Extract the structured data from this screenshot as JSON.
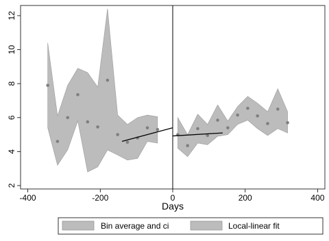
{
  "chart_data": {
    "type": "scatter",
    "xlabel": "Days",
    "ylabel": "",
    "xlim": [
      -420,
      420
    ],
    "ylim": [
      1.8,
      12.6
    ],
    "xticks": [
      -400,
      -200,
      0,
      200,
      400
    ],
    "yticks": [
      2,
      4,
      6,
      8,
      10,
      12
    ],
    "cutoff_x": 0,
    "grid": false,
    "legend_position": "bottom",
    "colors": {
      "band_fill": "#bcbcbc",
      "band_stroke": "#9a9a9a",
      "point": "#7f7f7f",
      "fit_line": "#000000",
      "cutoff_line": "#000000"
    },
    "series": [
      {
        "name": "Bin average and ci",
        "points": [
          {
            "x": -345,
            "y": 7.9,
            "lo": 5.4,
            "hi": 10.4
          },
          {
            "x": -318,
            "y": 4.6,
            "lo": 3.2,
            "hi": 6.1
          },
          {
            "x": -290,
            "y": 6.0,
            "lo": 4.1,
            "hi": 7.9
          },
          {
            "x": -262,
            "y": 7.35,
            "lo": 5.8,
            "hi": 8.9
          },
          {
            "x": -235,
            "y": 5.75,
            "lo": 2.8,
            "hi": 8.65
          },
          {
            "x": -207,
            "y": 5.45,
            "lo": 3.1,
            "hi": 7.8
          },
          {
            "x": -180,
            "y": 8.2,
            "lo": 4.1,
            "hi": 12.4
          },
          {
            "x": -152,
            "y": 5.0,
            "lo": 3.8,
            "hi": 6.15
          },
          {
            "x": -125,
            "y": 4.55,
            "lo": 3.5,
            "hi": 5.6
          },
          {
            "x": -97,
            "y": 4.8,
            "lo": 3.6,
            "hi": 6.0
          },
          {
            "x": -70,
            "y": 5.4,
            "lo": 4.6,
            "hi": 6.15
          },
          {
            "x": -42,
            "y": 5.3,
            "lo": 4.5,
            "hi": 6.05
          },
          {
            "x": 14,
            "y": 5.0,
            "lo": 4.2,
            "hi": 6.0
          },
          {
            "x": 41,
            "y": 4.35,
            "lo": 3.7,
            "hi": 5.0
          },
          {
            "x": 69,
            "y": 5.35,
            "lo": 4.5,
            "hi": 6.2
          },
          {
            "x": 96,
            "y": 4.95,
            "lo": 4.4,
            "hi": 5.6
          },
          {
            "x": 124,
            "y": 5.85,
            "lo": 4.9,
            "hi": 6.75
          },
          {
            "x": 152,
            "y": 5.4,
            "lo": 5.0,
            "hi": 5.8
          },
          {
            "x": 179,
            "y": 6.15,
            "lo": 5.6,
            "hi": 6.65
          },
          {
            "x": 207,
            "y": 6.55,
            "lo": 5.85,
            "hi": 7.25
          },
          {
            "x": 234,
            "y": 6.1,
            "lo": 5.35,
            "hi": 6.85
          },
          {
            "x": 262,
            "y": 5.65,
            "lo": 4.95,
            "hi": 6.35
          },
          {
            "x": 290,
            "y": 6.5,
            "lo": 5.35,
            "hi": 7.7
          },
          {
            "x": 317,
            "y": 5.7,
            "lo": 5.1,
            "hi": 6.35
          }
        ]
      },
      {
        "name": "Local-linear fit",
        "segments": [
          {
            "x": [
              -140,
              0
            ],
            "y": [
              4.6,
              5.4
            ]
          },
          {
            "x": [
              0,
              138
            ],
            "y": [
              4.92,
              5.1
            ]
          }
        ]
      }
    ],
    "legend": [
      "Bin average and ci",
      "Local-linear fit"
    ]
  }
}
